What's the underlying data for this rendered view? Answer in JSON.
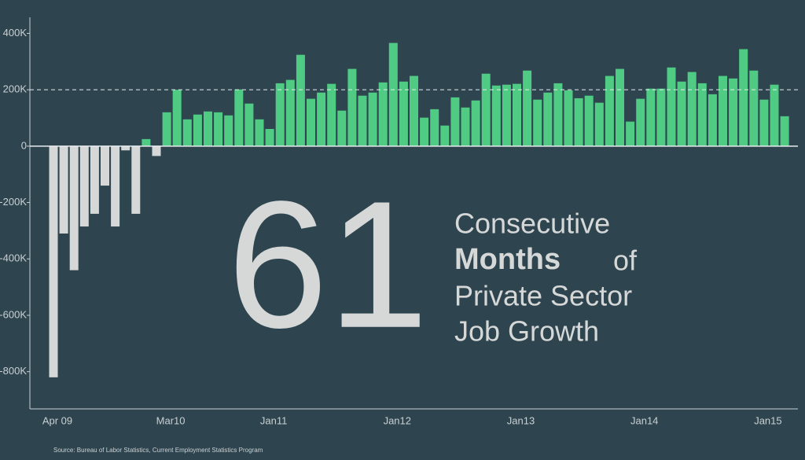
{
  "chart_data": {
    "type": "bar",
    "categories": [
      "Apr 09",
      null,
      null,
      null,
      null,
      null,
      null,
      null,
      null,
      null,
      null,
      "Mar10",
      null,
      null,
      null,
      null,
      null,
      null,
      null,
      null,
      null,
      "Jan11",
      null,
      null,
      null,
      null,
      null,
      null,
      null,
      null,
      null,
      null,
      null,
      "Jan12",
      null,
      null,
      null,
      null,
      null,
      null,
      null,
      null,
      null,
      null,
      null,
      "Jan13",
      null,
      null,
      null,
      null,
      null,
      null,
      null,
      null,
      null,
      null,
      null,
      "Jan14",
      null,
      null,
      null,
      null,
      null,
      null,
      null,
      null,
      null,
      null,
      null,
      "Jan15",
      null,
      null
    ],
    "values": [
      -820,
      -310,
      -440,
      -285,
      -240,
      -140,
      -285,
      -15,
      -240,
      25,
      -35,
      120,
      200,
      95,
      112,
      123,
      120,
      109,
      201,
      151,
      95,
      61,
      223,
      235,
      324,
      168,
      190,
      221,
      126,
      274,
      179,
      190,
      226,
      366,
      229,
      249,
      101,
      131,
      73,
      173,
      137,
      162,
      257,
      215,
      218,
      221,
      268,
      165,
      190,
      223,
      198,
      170,
      179,
      154,
      249,
      274,
      87,
      168,
      204,
      204,
      279,
      229,
      263,
      223,
      184,
      249,
      240,
      344,
      268,
      165,
      218,
      106
    ],
    "positive_color": "#4fcb84",
    "negative_color": "#d6d8d8",
    "ylim": [
      -932,
      457
    ],
    "yticks": [
      {
        "value": -800,
        "label": "-800K"
      },
      {
        "value": -600,
        "label": "-600K"
      },
      {
        "value": -400,
        "label": "-400K"
      },
      {
        "value": -200,
        "label": "-200K"
      },
      0,
      {
        "value": 200,
        "label": "200K"
      },
      {
        "value": 400,
        "label": "400K"
      }
    ],
    "reference_line": 200,
    "annotation": {
      "number": "61",
      "line1": "Consecutive",
      "bold": "Months",
      "after_bold": "of",
      "line3": "Private Sector",
      "line4": "Job Growth"
    },
    "source": "Source: Bureau of Labor Statistics, Current Employment Statistics Program"
  }
}
